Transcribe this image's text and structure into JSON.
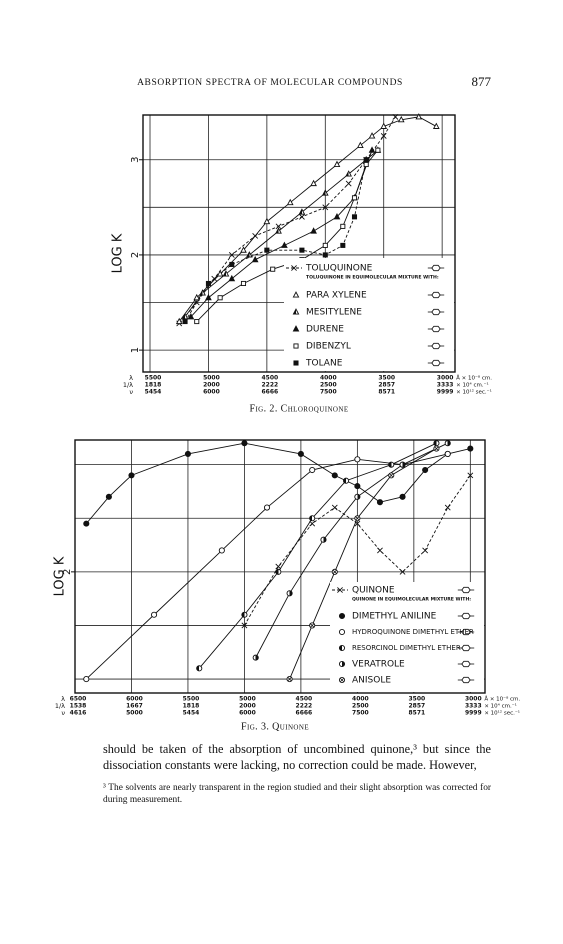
{
  "header": {
    "running_title": "ABSORPTION SPECTRA OF MOLECULAR COMPOUNDS",
    "page_number": "877"
  },
  "chart_data": [
    {
      "type": "line",
      "caption": "Fig. 2. Chloroquinone",
      "y_label": "LOG K",
      "xlim": [
        5560,
        2890
      ],
      "ylim": [
        0.77,
        3.47
      ],
      "xticks": [
        5500,
        5000,
        4500,
        4000,
        3500,
        3000
      ],
      "inv_wavelength_ticks": [
        1818,
        2000,
        2222,
        2500,
        2857,
        3333
      ],
      "frequency_ticks": [
        5454,
        6000,
        6666,
        7500,
        8571,
        9999
      ],
      "x_row_labels": [
        "λ",
        "1/λ",
        "ν"
      ],
      "x_row_units": [
        "Å × 10⁻⁸ cm.",
        "× 10⁴ cm.⁻¹",
        "× 10¹² sec.⁻¹"
      ],
      "yticks": [
        1,
        2,
        3
      ],
      "y_gridlines": [
        1,
        1.5,
        2,
        2.5,
        3
      ],
      "grid": true,
      "legend_title": "TOLUQUINONE IN EQUIMOLECULAR MIXTURE WITH:",
      "series": [
        {
          "name": "TOLUQUINONE",
          "color": "#111111",
          "marker": "cross",
          "line_style": "dashed",
          "x": [
            5250,
            5100,
            4950,
            4800,
            4600,
            4400,
            4200,
            4000,
            3800,
            3650,
            3500,
            3400
          ],
          "values": [
            1.28,
            1.5,
            1.75,
            2.0,
            2.2,
            2.3,
            2.4,
            2.5,
            2.75,
            3.0,
            3.25,
            3.45
          ]
        },
        {
          "name": "PARA XYLENE",
          "color": "#111111",
          "marker": "triangle",
          "line_style": "solid",
          "x": [
            5250,
            5100,
            4900,
            4700,
            4500,
            4300,
            4100,
            3900,
            3700,
            3600,
            3500,
            3350,
            3200,
            3050
          ],
          "values": [
            1.3,
            1.55,
            1.8,
            2.05,
            2.35,
            2.55,
            2.75,
            2.95,
            3.15,
            3.25,
            3.35,
            3.42,
            3.45,
            3.35
          ]
        },
        {
          "name": "MESITYLENE",
          "color": "#111111",
          "marker": "triangle-half",
          "line_style": "solid",
          "x": [
            5200,
            5050,
            4850,
            4650,
            4400,
            4200,
            4000,
            3800,
            3650,
            3550
          ],
          "values": [
            1.35,
            1.6,
            1.8,
            2.0,
            2.25,
            2.45,
            2.65,
            2.85,
            3.0,
            3.1
          ]
        },
        {
          "name": "DURENE",
          "color": "#111111",
          "marker": "triangle-filled",
          "line_style": "solid",
          "x": [
            5150,
            5000,
            4800,
            4600,
            4350,
            4100,
            3900,
            3750,
            3600
          ],
          "values": [
            1.35,
            1.55,
            1.75,
            1.95,
            2.1,
            2.25,
            2.4,
            2.6,
            3.1
          ]
        },
        {
          "name": "DIBENZYL",
          "color": "#111111",
          "marker": "square",
          "line_style": "solid",
          "x": [
            5100,
            4900,
            4700,
            4450,
            4200,
            4000,
            3850,
            3750,
            3650,
            3550
          ],
          "values": [
            1.3,
            1.55,
            1.7,
            1.85,
            1.95,
            2.1,
            2.3,
            2.6,
            2.95,
            3.1
          ]
        },
        {
          "name": "TOLANE",
          "color": "#111111",
          "marker": "square-filled",
          "line_style": "dashed",
          "x": [
            5200,
            5000,
            4800,
            4500,
            4200,
            4000,
            3850,
            3750,
            3650
          ],
          "values": [
            1.3,
            1.7,
            1.9,
            2.05,
            2.05,
            2.0,
            2.1,
            2.4,
            3.0
          ]
        }
      ]
    },
    {
      "type": "line",
      "caption": "Fig. 3. Quinone",
      "y_label": "LOG K",
      "xlim": [
        6500,
        2870
      ],
      "ylim": [
        0.87,
        3.23
      ],
      "xticks": [
        6500,
        6000,
        5500,
        5000,
        4500,
        4000,
        3500,
        3000
      ],
      "inv_wavelength_ticks": [
        1538,
        1667,
        1818,
        2000,
        2222,
        2500,
        2857,
        3333
      ],
      "frequency_ticks": [
        4616,
        5000,
        5454,
        6000,
        6666,
        7500,
        8571,
        9999
      ],
      "x_row_labels": [
        "λ",
        "1/λ",
        "ν"
      ],
      "x_row_units": [
        "Å × 10⁻⁸ cm.",
        "× 10⁴ cm.⁻¹",
        "× 10¹² sec.⁻¹"
      ],
      "yticks": [
        2
      ],
      "y_gridlines": [
        1,
        1.5,
        2,
        2.5,
        3
      ],
      "grid": true,
      "legend_title": "QUINONE IN EQUIMOLECULAR MIXTURE WITH:",
      "series": [
        {
          "name": "QUINONE",
          "color": "#111111",
          "marker": "cross",
          "line_style": "dashed",
          "x": [
            5000,
            4700,
            4400,
            4200,
            4000,
            3800,
            3600,
            3400,
            3200,
            3000
          ],
          "values": [
            1.5,
            2.05,
            2.45,
            2.6,
            2.45,
            2.2,
            2.0,
            2.2,
            2.6,
            2.9
          ]
        },
        {
          "name": "DIMETHYL ANILINE",
          "color": "#111111",
          "marker": "circle-filled",
          "line_style": "solid",
          "x": [
            6400,
            6200,
            6000,
            5500,
            5000,
            4500,
            4200,
            4000,
            3800,
            3600,
            3400,
            3200,
            3000
          ],
          "values": [
            2.45,
            2.7,
            2.9,
            3.1,
            3.2,
            3.1,
            2.9,
            2.8,
            2.65,
            2.7,
            2.95,
            3.1,
            3.15
          ]
        },
        {
          "name": "HYDROQUINONE DIMETHYL ETHER",
          "color": "#111111",
          "marker": "circle",
          "line_style": "solid",
          "x": [
            6400,
            5800,
            5200,
            4800,
            4400,
            4000,
            3600,
            3200
          ],
          "values": [
            1.0,
            1.6,
            2.2,
            2.6,
            2.95,
            3.05,
            3.0,
            3.1
          ]
        },
        {
          "name": "RESORCINOL DIMETHYL ETHER",
          "color": "#111111",
          "marker": "circle-half",
          "line_style": "solid",
          "x": [
            5400,
            5000,
            4700,
            4400,
            4100,
            3700,
            3300
          ],
          "values": [
            1.1,
            1.6,
            2.0,
            2.5,
            2.85,
            3.0,
            3.2
          ]
        },
        {
          "name": "VERATROLE",
          "color": "#111111",
          "marker": "circle-right-half",
          "line_style": "solid",
          "x": [
            4900,
            4600,
            4300,
            4000,
            3600,
            3200
          ],
          "values": [
            1.2,
            1.8,
            2.3,
            2.7,
            3.0,
            3.2
          ]
        },
        {
          "name": "ANISOLE",
          "color": "#111111",
          "marker": "circle-x",
          "line_style": "solid",
          "x": [
            4600,
            4400,
            4200,
            4000,
            3700,
            3300
          ],
          "values": [
            1.0,
            1.5,
            2.0,
            2.5,
            2.9,
            3.15
          ]
        }
      ]
    }
  ],
  "body": {
    "paragraph": "should be taken of the absorption of uncombined quinone,³ but since the dissociation constants were lacking, no correction could be made. However,"
  },
  "footnote": {
    "text": "³ The solvents are nearly transparent in the region studied and their slight absorption was corrected for during measurement."
  }
}
